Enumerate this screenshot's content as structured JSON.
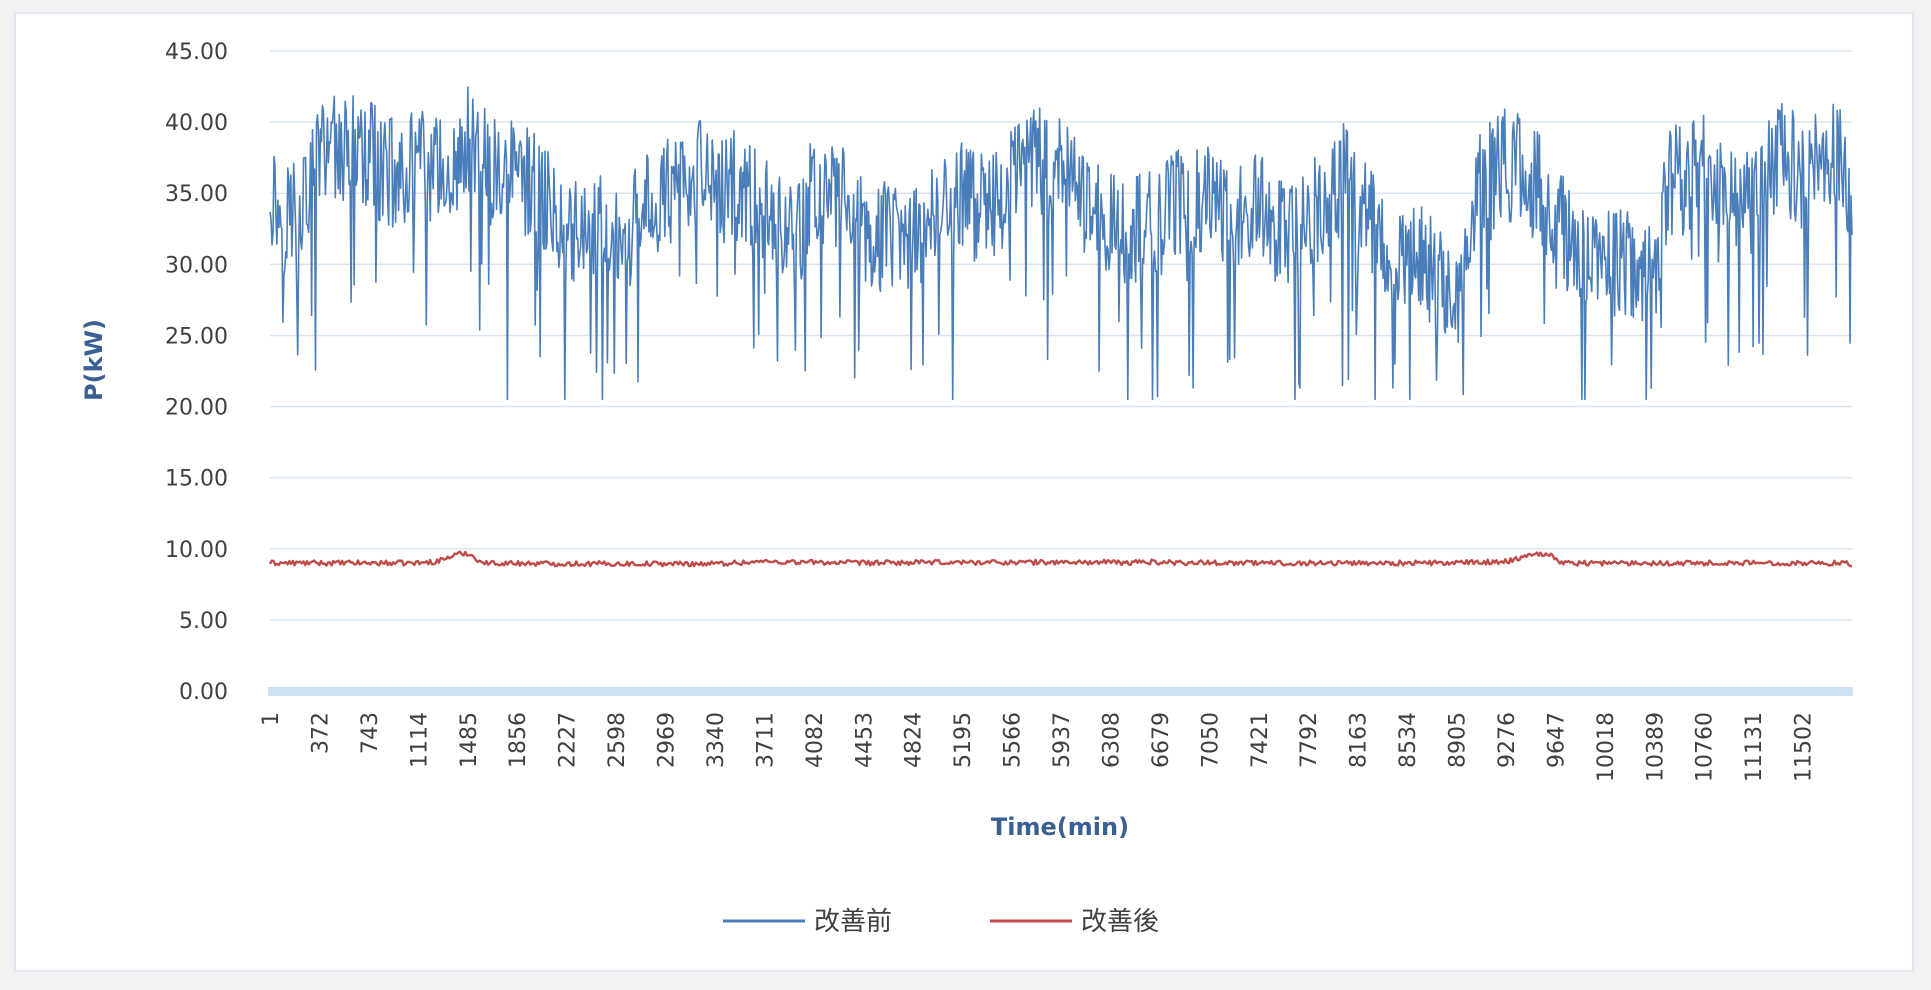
{
  "chart_data": {
    "type": "line",
    "xlabel": "Time(min)",
    "ylabel": "P(kW)",
    "ylim": [
      0,
      45
    ],
    "yticks": [
      "0.00",
      "5.00",
      "10.00",
      "15.00",
      "20.00",
      "25.00",
      "30.00",
      "35.00",
      "40.00",
      "45.00"
    ],
    "xlim": [
      1,
      11873
    ],
    "xticks": [
      "1",
      "372",
      "743",
      "1114",
      "1485",
      "1856",
      "2227",
      "2598",
      "2969",
      "3340",
      "3711",
      "4082",
      "4453",
      "4824",
      "5195",
      "5566",
      "5937",
      "6308",
      "6679",
      "7050",
      "7421",
      "7792",
      "8163",
      "8534",
      "8905",
      "9276",
      "9647",
      "10018",
      "10389",
      "10760",
      "11131",
      "11502"
    ],
    "grid": true,
    "legend_position": "bottom",
    "series": [
      {
        "name": "改善前",
        "color": "#4a7ebb",
        "x": [
          1,
          100,
          200,
          300,
          372,
          500,
          600,
          743,
          900,
          1000,
          1114,
          1250,
          1400,
          1485,
          1650,
          1700,
          1800,
          1856,
          2000,
          2227,
          2400,
          2500,
          2598,
          2700,
          2800,
          2969,
          3100,
          3200,
          3340,
          3500,
          3711,
          3850,
          4000,
          4082,
          4200,
          4350,
          4453,
          4600,
          4700,
          4824,
          5000,
          5100,
          5195,
          5300,
          5400,
          5500,
          5566,
          5700,
          5800,
          5937,
          6100,
          6200,
          6308,
          6450,
          6550,
          6679,
          6800,
          6900,
          7050,
          7250,
          7421,
          7550,
          7650,
          7792,
          7950,
          8050,
          8163,
          8300,
          8400,
          8534,
          8650,
          8750,
          8905,
          9050,
          9150,
          9276,
          9400,
          9500,
          9647,
          9800,
          9900,
          10018,
          10150,
          10250,
          10389,
          10500,
          10650,
          10760,
          10900,
          11000,
          11131,
          11250,
          11350,
          11502,
          11650,
          11750,
          11873
        ],
        "y": [
          35.5,
          33,
          34.5,
          35,
          37.5,
          38.5,
          38,
          37.5,
          36.5,
          36.5,
          37,
          36.5,
          37,
          38.5,
          36.5,
          36.5,
          36,
          37,
          35,
          33,
          32,
          33,
          31,
          31.5,
          34.5,
          35,
          36,
          36.5,
          35,
          35.5,
          33.5,
          32,
          32,
          36,
          35,
          34,
          32.5,
          32,
          31.5,
          32,
          34,
          33.5,
          35,
          34,
          35,
          33.5,
          36,
          37,
          37,
          36.5,
          35,
          34,
          33,
          31.5,
          33,
          33,
          34.5,
          34,
          35,
          33,
          34,
          32,
          32,
          33,
          35,
          36,
          34.5,
          33,
          31.5,
          31,
          30,
          29.5,
          27.5,
          35,
          36,
          37,
          36.5,
          35.5,
          33.5,
          31,
          31,
          30,
          30.5,
          30,
          29,
          36,
          36,
          37,
          35.5,
          34.5,
          35,
          37,
          38,
          36,
          37.5,
          38,
          35
        ]
      },
      {
        "name": "改善後",
        "color": "#be4b48",
        "x": [
          1,
          1114,
          1250,
          1400,
          1485,
          1600,
          2227,
          3340,
          3711,
          4453,
          5195,
          5937,
          6308,
          6450,
          6550,
          6679,
          7421,
          8163,
          8905,
          9276,
          9500,
          9600,
          9700,
          10018,
          10760,
          11502,
          11650,
          11873
        ],
        "y": [
          9.0,
          9.0,
          9.1,
          9.6,
          9.7,
          9.0,
          8.95,
          8.95,
          9.1,
          9.0,
          9.05,
          9.05,
          9.05,
          9.0,
          9.1,
          9.05,
          9.0,
          9.0,
          9.0,
          9.1,
          9.7,
          9.6,
          9.0,
          9.0,
          9.0,
          9.0,
          9.0,
          8.95
        ]
      }
    ]
  }
}
